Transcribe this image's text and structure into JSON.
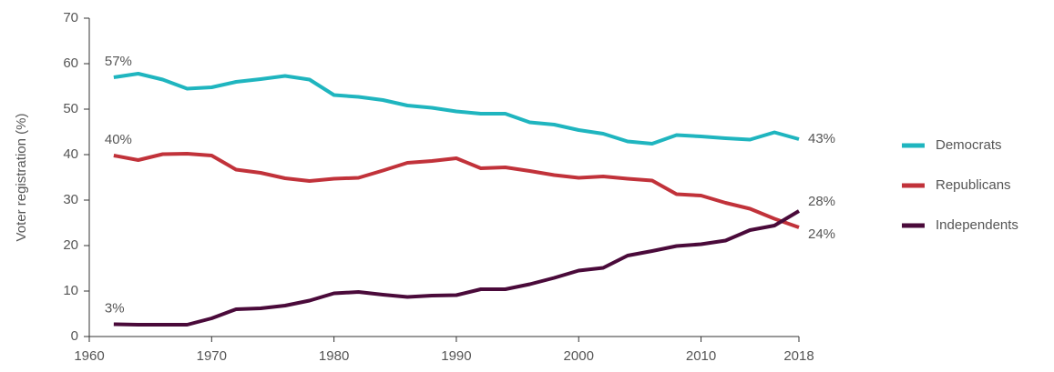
{
  "chart_data": {
    "type": "line",
    "y_label": "Voter registration (%)",
    "x": [
      1962,
      1964,
      1966,
      1968,
      1970,
      1972,
      1974,
      1976,
      1978,
      1980,
      1982,
      1984,
      1986,
      1988,
      1990,
      1992,
      1994,
      1996,
      1998,
      2000,
      2002,
      2004,
      2006,
      2008,
      2010,
      2012,
      2014,
      2016,
      2018
    ],
    "series": [
      {
        "name": "Democrats",
        "color": "#1fb5bf",
        "values": [
          57,
          57.8,
          56.5,
          54.5,
          54.8,
          56,
          56.6,
          57.3,
          56.5,
          53.1,
          52.7,
          52,
          50.8,
          50.3,
          49.5,
          49,
          49,
          47.1,
          46.6,
          45.4,
          44.6,
          42.9,
          42.4,
          44.3,
          44,
          43.6,
          43.3,
          44.9,
          43.4
        ],
        "value_labels": [
          "57%",
          null,
          null,
          null,
          null,
          null,
          null,
          null,
          null,
          null,
          null,
          null,
          null,
          null,
          null,
          null,
          null,
          null,
          null,
          null,
          null,
          null,
          null,
          null,
          null,
          null,
          null,
          null,
          "43%"
        ]
      },
      {
        "name": "Republicans",
        "color": "#c1323a",
        "values": [
          39.8,
          38.8,
          40.1,
          40.2,
          39.8,
          36.7,
          36,
          34.8,
          34.2,
          34.7,
          34.9,
          36.5,
          38.2,
          38.6,
          39.2,
          37,
          37.2,
          36.4,
          35.5,
          34.9,
          35.2,
          34.7,
          34.3,
          31.3,
          31,
          29.4,
          28.1,
          25.9,
          24
        ],
        "value_labels": [
          "40%",
          null,
          null,
          null,
          null,
          null,
          null,
          null,
          null,
          null,
          null,
          null,
          null,
          null,
          null,
          null,
          null,
          null,
          null,
          null,
          null,
          null,
          null,
          null,
          null,
          null,
          null,
          null,
          "24%"
        ]
      },
      {
        "name": "Independents",
        "color": "#4a0a3a",
        "values": [
          2.7,
          2.6,
          2.6,
          2.6,
          4,
          6,
          6.2,
          6.8,
          7.9,
          9.5,
          9.8,
          9.2,
          8.7,
          9,
          9.1,
          10.4,
          10.4,
          11.5,
          12.9,
          14.5,
          15.1,
          17.8,
          18.8,
          19.9,
          20.3,
          21.1,
          23.4,
          24.4,
          27.6
        ],
        "value_labels": [
          "3%",
          null,
          null,
          null,
          null,
          null,
          null,
          null,
          null,
          null,
          null,
          null,
          null,
          null,
          null,
          null,
          null,
          null,
          null,
          null,
          null,
          null,
          null,
          null,
          null,
          null,
          null,
          null,
          "28%"
        ]
      }
    ],
    "xlim": [
      1960,
      2018
    ],
    "xticks": [
      1960,
      1970,
      1980,
      1990,
      2000,
      2010,
      2018
    ],
    "ylim": [
      0,
      70
    ],
    "yticks": [
      0,
      10,
      20,
      30,
      40,
      50,
      60,
      70
    ],
    "grid": false,
    "legend": "right"
  }
}
